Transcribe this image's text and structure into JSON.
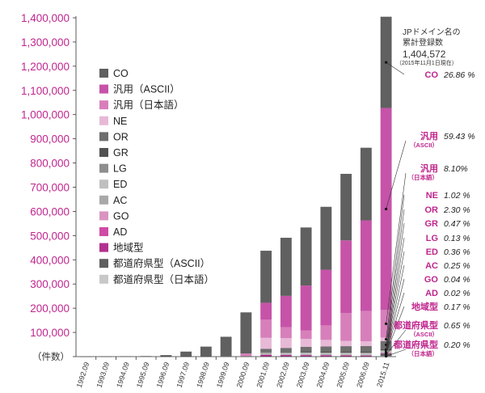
{
  "chart_data": {
    "type": "bar",
    "stacked": true,
    "unit_label": "（件数）",
    "ylim": [
      0,
      1400000
    ],
    "yticks": [
      "0",
      "100,000",
      "200,000",
      "300,000",
      "400,000",
      "500,000",
      "600,000",
      "700,000",
      "800,000",
      "900,000",
      "1,000,000",
      "1,100,000",
      "1,200,000",
      "1,300,000",
      "1,400,000"
    ],
    "ytick_values": [
      0,
      100000,
      200000,
      300000,
      400000,
      500000,
      600000,
      700000,
      800000,
      900000,
      1000000,
      1100000,
      1200000,
      1300000,
      1400000
    ],
    "categories": [
      "1992.09",
      "1993.09",
      "1994.09",
      "1995.09",
      "1996.09",
      "1997.09",
      "1998.09",
      "1999.09",
      "2000.09",
      "2001.09",
      "2002.09",
      "2003.09",
      "2004.09",
      "2005.09",
      "2006.09",
      "2015.11"
    ],
    "series": [
      {
        "name": "都道府県型（日本語）",
        "color": "#c8c8c8",
        "values": [
          0,
          0,
          0,
          0,
          0,
          0,
          0,
          0,
          0,
          0,
          0,
          0,
          0,
          0,
          0,
          2800
        ]
      },
      {
        "name": "都道府県型（ASCII）",
        "color": "#5f5f5f",
        "values": [
          0,
          0,
          0,
          0,
          0,
          0,
          0,
          0,
          0,
          0,
          0,
          0,
          0,
          0,
          0,
          9100
        ]
      },
      {
        "name": "地域型",
        "color": "#b2318f",
        "values": [
          0,
          0,
          0,
          0,
          0,
          0,
          0,
          0,
          0,
          8000,
          7000,
          6500,
          6000,
          5500,
          5000,
          2400
        ]
      },
      {
        "name": "AD",
        "color": "#cf4aa6",
        "values": [
          0,
          0,
          0,
          0,
          0,
          0,
          0,
          0,
          0,
          0,
          0,
          0,
          0,
          0,
          0,
          300
        ]
      },
      {
        "name": "GO",
        "color": "#d994c2",
        "values": [
          0,
          0,
          0,
          0,
          0,
          100,
          150,
          200,
          300,
          500,
          550,
          600,
          600,
          600,
          600,
          600
        ]
      },
      {
        "name": "AC",
        "color": "#a8a8a8",
        "values": [
          0,
          0,
          0,
          0,
          200,
          700,
          1200,
          1800,
          2500,
          3000,
          3200,
          3300,
          3400,
          3400,
          3400,
          3500
        ]
      },
      {
        "name": "ED",
        "color": "#c0c0c0",
        "values": [
          0,
          0,
          0,
          0,
          0,
          0,
          0,
          0,
          0,
          4000,
          4800,
          5000,
          5000,
          5100,
          5100,
          5100
        ]
      },
      {
        "name": "LG",
        "color": "#8e8e8e",
        "values": [
          0,
          0,
          0,
          0,
          0,
          0,
          0,
          0,
          0,
          0,
          0,
          1700,
          1800,
          1800,
          1800,
          1800
        ]
      },
      {
        "name": "GR",
        "color": "#525252",
        "values": [
          0,
          0,
          0,
          0,
          0,
          0,
          0,
          0,
          0,
          2000,
          3500,
          4500,
          5200,
          5800,
          6200,
          6600
        ]
      },
      {
        "name": "OR",
        "color": "#6e6e6e",
        "values": [
          0,
          0,
          0,
          0,
          0,
          0,
          0,
          0,
          0,
          15000,
          17000,
          19000,
          20000,
          21000,
          22000,
          32300
        ]
      },
      {
        "name": "NE",
        "color": "#e7b9d6",
        "values": [
          0,
          0,
          0,
          0,
          0,
          0,
          0,
          0,
          0,
          45000,
          40000,
          33000,
          27000,
          22000,
          19000,
          14300
        ]
      },
      {
        "name": "汎用（日本語）",
        "color": "#d77fbb",
        "values": [
          0,
          0,
          0,
          0,
          0,
          0,
          0,
          0,
          10000,
          75000,
          45000,
          35000,
          60000,
          115000,
          125000,
          113700
        ]
      },
      {
        "name": "汎用（ASCII）",
        "color": "#c653a8",
        "values": [
          0,
          0,
          0,
          0,
          0,
          0,
          0,
          0,
          0,
          70000,
          130000,
          185000,
          230000,
          300000,
          375000,
          834700
        ]
      },
      {
        "name": "CO",
        "color": "#606060",
        "values": [
          100,
          300,
          1000,
          2000,
          6000,
          20000,
          40000,
          80000,
          170000,
          215000,
          240000,
          240000,
          260000,
          275000,
          300000,
          377200
        ]
      }
    ],
    "legend_order": [
      "CO",
      "汎用（ASCII）",
      "汎用（日本語）",
      "NE",
      "OR",
      "GR",
      "LG",
      "ED",
      "AC",
      "GO",
      "AD",
      "地域型",
      "都道府県型（ASCII）",
      "都道府県型（日本語）"
    ],
    "legend_placement": "upper-left",
    "grid": false,
    "total_annotation": {
      "line1": "JPドメイン名の",
      "line2": "累計登録数",
      "value": "1,404,572",
      "note": "（2015年11月1日現在）"
    },
    "share_annotations": [
      {
        "label": "CO",
        "sublabel": "",
        "percent": "26.86 %"
      },
      {
        "label": "汎用",
        "sublabel": "（ASCII）",
        "percent": "59.43 %"
      },
      {
        "label": "汎用",
        "sublabel": "（日本語）",
        "percent": "8.10%"
      },
      {
        "label": "NE",
        "sublabel": "",
        "percent": "1.02 %"
      },
      {
        "label": "OR",
        "sublabel": "",
        "percent": "2.30 %"
      },
      {
        "label": "GR",
        "sublabel": "",
        "percent": "0.47 %"
      },
      {
        "label": "LG",
        "sublabel": "",
        "percent": "0.13 %"
      },
      {
        "label": "ED",
        "sublabel": "",
        "percent": "0.36 %"
      },
      {
        "label": "AC",
        "sublabel": "",
        "percent": "0.25 %"
      },
      {
        "label": "GO",
        "sublabel": "",
        "percent": "0.04 %"
      },
      {
        "label": "AD",
        "sublabel": "",
        "percent": "0.02 %"
      },
      {
        "label": "地域型",
        "sublabel": "",
        "percent": "0.17 %"
      },
      {
        "label": "都道府県型",
        "sublabel": "（ASCII）",
        "percent": "0.65 %"
      },
      {
        "label": "都道府県型",
        "sublabel": "（日本語）",
        "percent": "0.20 %"
      }
    ],
    "accent_color": "#c0268e"
  }
}
